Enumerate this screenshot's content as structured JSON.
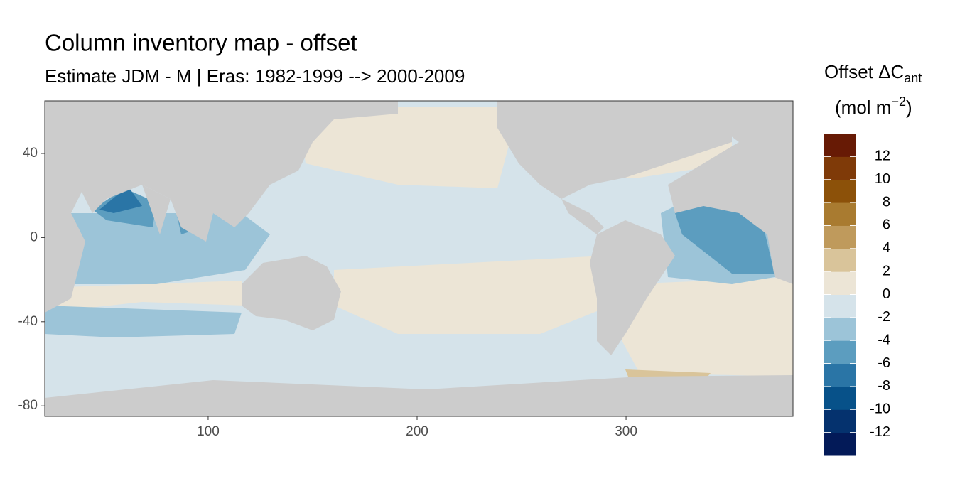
{
  "chart_data": {
    "type": "raster-map",
    "title": "Column inventory map - offset",
    "subtitle": "Estimate JDM - M | Eras: 1982-1999 --> 2000-2009",
    "xlim": [
      21.8,
      379.9
    ],
    "xticks": [
      100,
      200,
      300
    ],
    "ylim": [
      -85,
      65
    ],
    "yticks": [
      40,
      0,
      -40,
      -80
    ],
    "legend": {
      "title_main": "Offset ΔC",
      "title_sub": "ant",
      "unit_main": "(mol m",
      "unit_sup": "−2",
      "unit_end": ")",
      "lim": [
        -14,
        14
      ],
      "breaks": [
        12,
        10,
        8,
        6,
        4,
        2,
        0,
        -2,
        -4,
        -6,
        -8,
        -10,
        -12
      ],
      "colors": [
        "#031a58",
        "#05326e",
        "#075189",
        "#2a75a6",
        "#5c9dbf",
        "#9cc4d8",
        "#d5e3ea",
        "#ece5d6",
        "#d9c49a",
        "#bf9a5c",
        "#a97b30",
        "#8c5109",
        "#7f3a08",
        "#671a05"
      ]
    }
  }
}
